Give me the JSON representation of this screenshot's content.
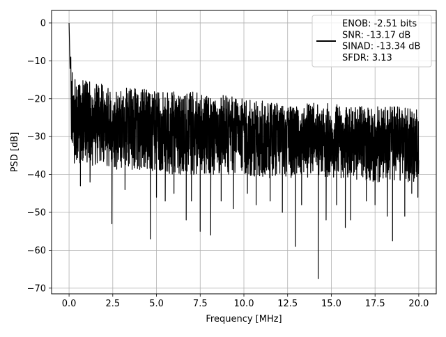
{
  "chart_data": {
    "type": "line",
    "xlabel": "Frequency [MHz]",
    "ylabel": "PSD [dB]",
    "xlim": [
      -1.0,
      21.0
    ],
    "ylim": [
      -71.5,
      3.3
    ],
    "grid": true,
    "legend_placement": "top-right",
    "line_color": "#000000",
    "x_ticks": [
      {
        "value": 0.0,
        "label": "0.0"
      },
      {
        "value": 2.5,
        "label": "2.5"
      },
      {
        "value": 5.0,
        "label": "5.0"
      },
      {
        "value": 7.5,
        "label": "7.5"
      },
      {
        "value": 10.0,
        "label": "10.0"
      },
      {
        "value": 12.5,
        "label": "12.5"
      },
      {
        "value": 15.0,
        "label": "15.0"
      },
      {
        "value": 17.5,
        "label": "17.5"
      },
      {
        "value": 20.0,
        "label": "20.0"
      }
    ],
    "y_ticks": [
      {
        "value": 0,
        "label": "0"
      },
      {
        "value": -10,
        "label": "−10"
      },
      {
        "value": -20,
        "label": "−20"
      },
      {
        "value": -30,
        "label": "−30"
      },
      {
        "value": -40,
        "label": "−40"
      },
      {
        "value": -50,
        "label": "−50"
      },
      {
        "value": -60,
        "label": "−60"
      },
      {
        "value": -70,
        "label": "−70"
      }
    ],
    "legend_lines": [
      "ENOB: -2.51 bits",
      "SNR: -13.17 dB",
      "SINAD: -13.34 dB",
      "SFDR: 3.13"
    ],
    "series": [
      {
        "envelope": {
          "x": [
            0.0,
            0.1,
            0.3,
            0.6,
            1.0,
            1.5,
            2.0,
            3.0,
            4.0,
            5.0,
            6.0,
            7.0,
            8.0,
            9.0,
            10.0,
            11.0,
            12.0,
            13.0,
            14.0,
            15.0,
            16.0,
            17.0,
            18.0,
            19.0,
            20.0
          ],
          "upper": [
            -5,
            -9,
            -13,
            -14,
            -14,
            -15,
            -15,
            -16,
            -16,
            -17,
            -17,
            -17,
            -18,
            -18,
            -19,
            -19,
            -20,
            -20,
            -20,
            -20,
            -21,
            -21,
            -21,
            -21,
            -22
          ],
          "lower": [
            -32,
            -34,
            -36,
            -37,
            -38,
            -38,
            -38,
            -39,
            -39,
            -39,
            -40,
            -40,
            -40,
            -40,
            -40,
            -41,
            -41,
            -41,
            -41,
            -41,
            -41,
            -42,
            -42,
            -42,
            -42
          ]
        },
        "peaks": [
          {
            "x": 0.0,
            "y": 0.0
          },
          {
            "x": 0.03,
            "y": -6
          },
          {
            "x": 0.06,
            "y": -12
          },
          {
            "x": 0.1,
            "y": -9
          }
        ],
        "dips": [
          {
            "x": 0.3,
            "y": -37
          },
          {
            "x": 0.65,
            "y": -43
          },
          {
            "x": 1.2,
            "y": -42
          },
          {
            "x": 2.45,
            "y": -53
          },
          {
            "x": 3.2,
            "y": -44
          },
          {
            "x": 4.65,
            "y": -57
          },
          {
            "x": 5.0,
            "y": -46
          },
          {
            "x": 5.5,
            "y": -47
          },
          {
            "x": 6.0,
            "y": -45
          },
          {
            "x": 6.7,
            "y": -52
          },
          {
            "x": 7.0,
            "y": -47
          },
          {
            "x": 7.5,
            "y": -55
          },
          {
            "x": 8.1,
            "y": -56
          },
          {
            "x": 8.7,
            "y": -47
          },
          {
            "x": 9.4,
            "y": -49
          },
          {
            "x": 10.2,
            "y": -45
          },
          {
            "x": 10.7,
            "y": -48
          },
          {
            "x": 11.5,
            "y": -47
          },
          {
            "x": 12.2,
            "y": -50
          },
          {
            "x": 12.95,
            "y": -59
          },
          {
            "x": 13.3,
            "y": -48
          },
          {
            "x": 14.25,
            "y": -67.5
          },
          {
            "x": 14.7,
            "y": -52
          },
          {
            "x": 15.3,
            "y": -48
          },
          {
            "x": 15.8,
            "y": -54
          },
          {
            "x": 16.1,
            "y": -52
          },
          {
            "x": 17.0,
            "y": -47
          },
          {
            "x": 17.5,
            "y": -48
          },
          {
            "x": 18.2,
            "y": -51
          },
          {
            "x": 18.5,
            "y": -57.5
          },
          {
            "x": 19.2,
            "y": -51
          },
          {
            "x": 19.6,
            "y": -45
          },
          {
            "x": 19.95,
            "y": -46
          }
        ]
      }
    ]
  }
}
